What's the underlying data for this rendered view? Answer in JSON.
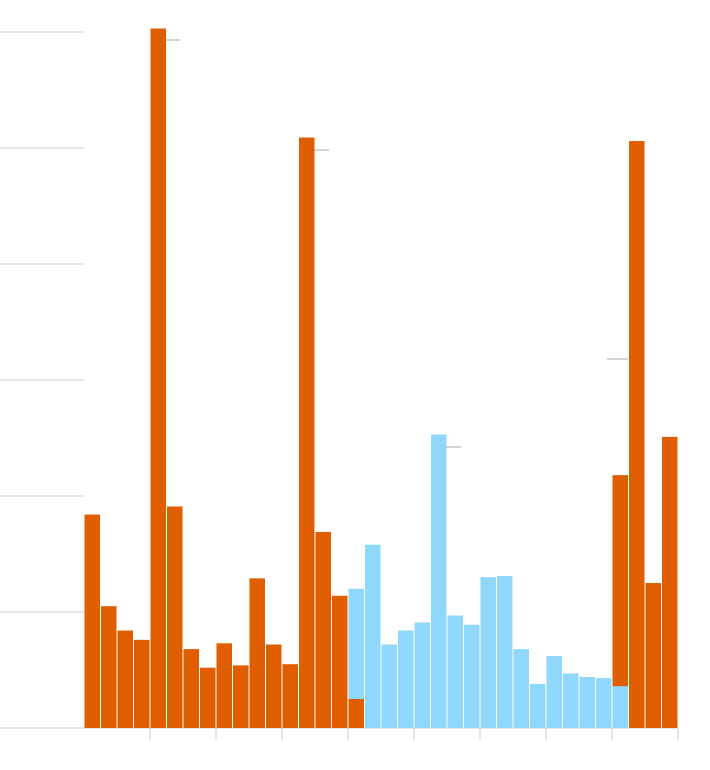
{
  "chart_data": {
    "type": "bar",
    "categories": [
      null,
      null,
      null,
      null,
      null,
      null,
      null,
      null,
      null,
      null,
      null,
      null,
      null,
      null,
      null,
      null,
      null,
      null,
      null,
      null,
      null,
      null,
      null,
      null,
      null,
      null,
      null,
      null,
      null,
      null,
      null,
      null,
      null,
      null,
      null,
      null
    ],
    "series": [
      {
        "color": "#e05e00",
        "values": [
          1.84,
          1.05,
          0.84,
          0.76,
          6.03,
          1.91,
          0.68,
          0.52,
          0.73,
          0.54,
          1.29,
          0.72,
          0.55,
          5.09,
          1.69,
          1.14,
          0.25,
          null,
          null,
          null,
          null,
          null,
          null,
          null,
          null,
          null,
          null,
          null,
          null,
          null,
          null,
          null,
          2.18,
          5.06,
          1.25,
          2.51
        ]
      },
      {
        "color": "#8fd8fb",
        "values": [
          null,
          null,
          null,
          null,
          null,
          null,
          null,
          null,
          null,
          null,
          null,
          null,
          null,
          null,
          null,
          null,
          1.2,
          1.58,
          0.72,
          0.84,
          0.91,
          2.53,
          0.97,
          0.89,
          1.3,
          1.31,
          0.68,
          0.38,
          0.62,
          0.47,
          0.44,
          0.43,
          0.36,
          null,
          null,
          null
        ]
      }
    ],
    "ylim": [
      0,
      6
    ],
    "yticks": [
      0,
      1,
      2,
      3,
      4,
      5,
      6
    ],
    "grid": true
  }
}
